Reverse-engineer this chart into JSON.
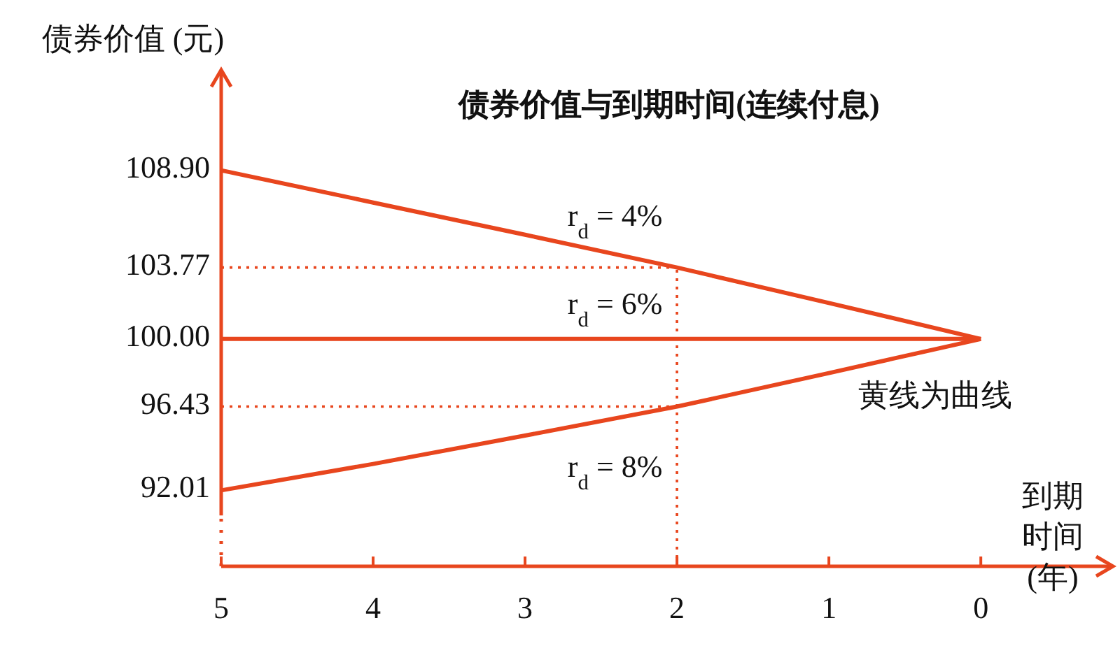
{
  "chart_data": {
    "type": "line",
    "title": "债券价值与到期时间(连续付息)",
    "xlabel": "到期时间 (年)",
    "ylabel": "债券价值 (元)",
    "x": [
      5,
      4,
      3,
      2,
      1,
      0
    ],
    "series": [
      {
        "name": "r$_{d}$ = 4%",
        "color": "#e8461e",
        "values": [
          108.9,
          107.2,
          105.5,
          103.77,
          101.9,
          100.0
        ]
      },
      {
        "name": "r$_{d}$ = 6%",
        "color": "#e8461e",
        "values": [
          100.0,
          100.0,
          100.0,
          100.0,
          100.0,
          100.0
        ]
      },
      {
        "name": "r$_{d}$ = 8%",
        "color": "#e8461e",
        "values": [
          92.01,
          93.4,
          94.9,
          96.43,
          98.2,
          100.0
        ]
      }
    ],
    "xlim": [
      5,
      -0.87
    ],
    "ylim": [
      88,
      114.2
    ],
    "xticks": [
      5,
      4,
      3,
      2,
      1,
      0
    ],
    "yticks": [
      {
        "value": 92.01,
        "label": "92.01"
      },
      {
        "value": 96.43,
        "label": "96.43"
      },
      {
        "value": 100,
        "label": "100.00"
      },
      {
        "value": 103.77,
        "label": "103.77"
      },
      {
        "value": 108.9,
        "label": "108.90"
      }
    ],
    "ref_lines": [
      {
        "axis": "y",
        "value": 103.77,
        "color": "#e8461e",
        "line_style": "dotted"
      },
      {
        "axis": "y",
        "value": 96.43,
        "color": "#e8461e",
        "line_style": "dotted"
      },
      {
        "axis": "x",
        "value": 2,
        "color": "#e8461e",
        "line_style": "dotted"
      }
    ],
    "annotations": [
      "黄线为曲线"
    ],
    "grid": false,
    "marker": "none",
    "line_style": "solid"
  }
}
